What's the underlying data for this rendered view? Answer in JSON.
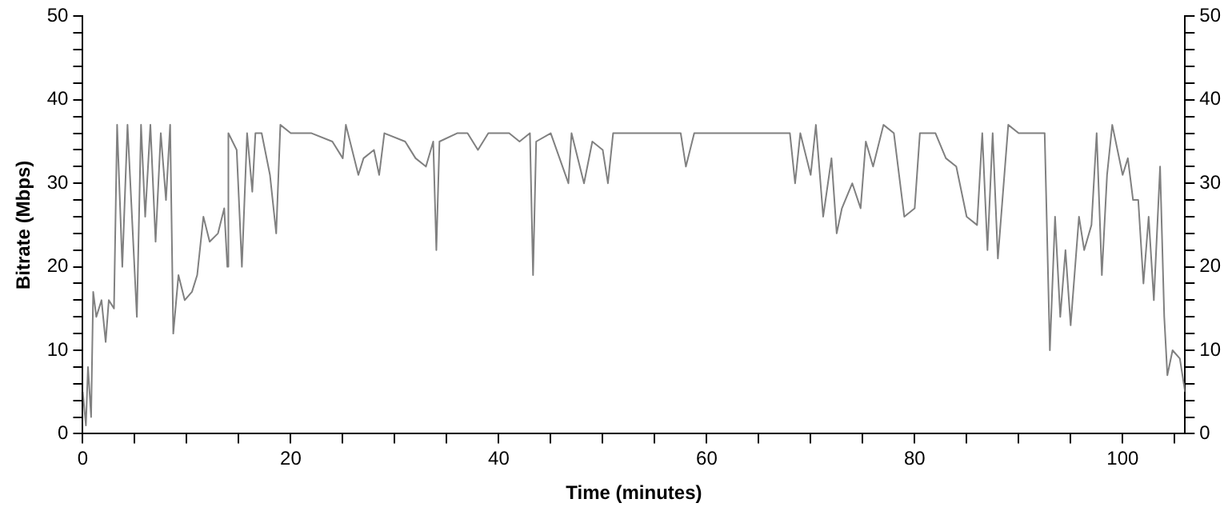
{
  "chart_data": {
    "type": "line",
    "xlabel": "Time (minutes)",
    "ylabel": "Bitrate (Mbps)",
    "xlim": [
      0,
      106
    ],
    "ylim": [
      0,
      50
    ],
    "y2lim": [
      0,
      50
    ],
    "xticks": [
      0,
      {
        "value": 5,
        "label": null
      },
      {
        "value": 10,
        "label": null
      },
      {
        "value": 15,
        "label": null
      },
      20,
      {
        "value": 25,
        "label": null
      },
      {
        "value": 30,
        "label": null
      },
      {
        "value": 35,
        "label": null
      },
      40,
      {
        "value": 45,
        "label": null
      },
      {
        "value": 50,
        "label": null
      },
      {
        "value": 55,
        "label": null
      },
      60,
      {
        "value": 65,
        "label": null
      },
      {
        "value": 70,
        "label": null
      },
      {
        "value": 75,
        "label": null
      },
      80,
      {
        "value": 85,
        "label": null
      },
      {
        "value": 90,
        "label": null
      },
      {
        "value": 95,
        "label": null
      },
      100,
      {
        "value": 105,
        "label": null
      }
    ],
    "yticks": [
      0,
      {
        "value": 2,
        "label": null
      },
      {
        "value": 4,
        "label": null
      },
      {
        "value": 6,
        "label": null
      },
      {
        "value": 8,
        "label": null
      },
      10,
      {
        "value": 12,
        "label": null
      },
      {
        "value": 14,
        "label": null
      },
      {
        "value": 16,
        "label": null
      },
      {
        "value": 18,
        "label": null
      },
      20,
      {
        "value": 22,
        "label": null
      },
      {
        "value": 24,
        "label": null
      },
      {
        "value": 26,
        "label": null
      },
      {
        "value": 28,
        "label": null
      },
      30,
      {
        "value": 32,
        "label": null
      },
      {
        "value": 34,
        "label": null
      },
      {
        "value": 36,
        "label": null
      },
      {
        "value": 38,
        "label": null
      },
      40,
      {
        "value": 42,
        "label": null
      },
      {
        "value": 44,
        "label": null
      },
      {
        "value": 46,
        "label": null
      },
      {
        "value": 48,
        "label": null
      },
      50
    ],
    "y2ticks": [
      0,
      {
        "value": 2,
        "label": null
      },
      {
        "value": 4,
        "label": null
      },
      {
        "value": 6,
        "label": null
      },
      {
        "value": 8,
        "label": null
      },
      10,
      {
        "value": 12,
        "label": null
      },
      {
        "value": 14,
        "label": null
      },
      {
        "value": 16,
        "label": null
      },
      {
        "value": 18,
        "label": null
      },
      20,
      {
        "value": 22,
        "label": null
      },
      {
        "value": 24,
        "label": null
      },
      {
        "value": 26,
        "label": null
      },
      {
        "value": 28,
        "label": null
      },
      30,
      {
        "value": 32,
        "label": null
      },
      {
        "value": 34,
        "label": null
      },
      {
        "value": 36,
        "label": null
      },
      {
        "value": 38,
        "label": null
      },
      40,
      {
        "value": 42,
        "label": null
      },
      {
        "value": 44,
        "label": null
      },
      {
        "value": 46,
        "label": null
      },
      {
        "value": 48,
        "label": null
      },
      50
    ],
    "grid": false,
    "legend": false,
    "marker": "none",
    "line_style": "solid",
    "x": [
      0,
      0.3,
      0.5,
      0.8,
      1.0,
      1.3,
      1.8,
      2.2,
      2.5,
      3.0,
      3.3,
      3.8,
      4.3,
      5.2,
      5.6,
      6.0,
      6.5,
      7.0,
      7.5,
      8.0,
      8.4,
      8.7,
      9.2,
      9.8,
      10.5,
      11.0,
      11.6,
      12.2,
      13.0,
      13.6,
      13.9,
      14.0,
      14.8,
      15.3,
      15.8,
      16.3,
      16.6,
      17.2,
      18.0,
      18.6,
      19.0,
      20,
      22,
      24,
      25,
      25.3,
      26.5,
      27,
      28,
      28.5,
      29,
      31,
      32,
      33,
      33.7,
      34,
      34.3,
      36,
      37,
      38,
      39,
      41,
      42,
      43,
      43.3,
      43.6,
      45,
      46.7,
      47,
      48.2,
      49,
      50,
      50.5,
      51,
      55,
      57.5,
      58,
      58.8,
      62,
      66,
      68,
      68.5,
      69,
      70,
      70.5,
      71.2,
      72,
      72.5,
      73,
      74,
      74.8,
      75.3,
      76,
      77,
      78,
      79,
      80,
      80.5,
      82,
      83,
      84,
      85,
      86,
      86.5,
      87,
      87.5,
      88,
      89,
      90,
      92,
      92.5,
      93,
      93.5,
      94,
      94.5,
      95,
      95.8,
      96.3,
      97,
      97.5,
      98,
      98.5,
      99,
      100,
      100.5,
      101,
      101.5,
      102,
      102.5,
      103,
      103.6,
      104,
      104.3,
      104.8,
      105.5,
      106
    ],
    "series": [
      {
        "color": "#808080",
        "values": [
          5,
          1,
          8,
          2,
          17,
          14,
          16,
          11,
          16,
          15,
          37,
          20,
          37,
          14,
          37,
          26,
          37,
          23,
          36,
          28,
          37,
          12,
          19,
          16,
          17,
          19,
          26,
          23,
          24,
          27,
          20,
          36,
          34,
          20,
          36,
          29,
          36,
          36,
          31,
          24,
          37,
          36,
          36,
          35,
          33,
          37,
          31,
          33,
          34,
          31,
          36,
          35,
          33,
          32,
          35,
          22,
          35,
          36,
          36,
          34,
          36,
          36,
          35,
          36,
          19,
          35,
          36,
          30,
          36,
          30,
          35,
          34,
          30,
          36,
          36,
          36,
          32,
          36,
          36,
          36,
          36,
          30,
          36,
          31,
          37,
          26,
          33,
          24,
          27,
          30,
          27,
          35,
          32,
          37,
          36,
          26,
          27,
          36,
          36,
          33,
          32,
          26,
          25,
          36,
          22,
          36,
          21,
          37,
          36,
          36,
          36,
          10,
          26,
          14,
          22,
          13,
          26,
          22,
          25,
          36,
          19,
          31,
          37,
          31,
          33,
          28,
          28,
          18,
          26,
          16,
          32,
          14,
          7,
          10,
          9,
          5
        ]
      }
    ]
  }
}
